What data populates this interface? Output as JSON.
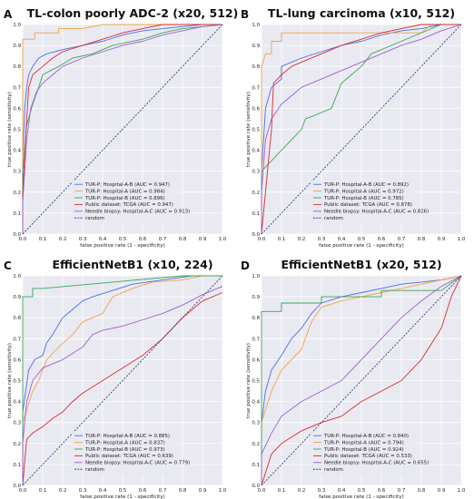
{
  "chart_data": [
    {
      "panel": "A",
      "type": "line",
      "title": "TL-colon poorly ADC-2 (x20, 512)",
      "xlabel": "false positive rate (1 - specificity)",
      "ylabel": "true positive rate (sensitivity)",
      "xlim": [
        0,
        1
      ],
      "ylim": [
        0,
        1
      ],
      "xticks": [
        "0.0",
        "0.1",
        "0.2",
        "0.3",
        "0.4",
        "0.5",
        "0.6",
        "0.7",
        "0.8",
        "0.9",
        "1.0"
      ],
      "yticks": [
        "0.0",
        "0.1",
        "0.2",
        "0.3",
        "0.4",
        "0.5",
        "0.6",
        "0.7",
        "0.8",
        "0.9",
        "1.0"
      ],
      "grid": true,
      "legend_position": "lower-right",
      "series": [
        {
          "name": "TUR-P: Hospital-A-B (AUC = 0.947)",
          "color": "#4a6fe3",
          "x": [
            0,
            0,
            0.01,
            0.02,
            0.03,
            0.05,
            0.08,
            0.12,
            0.2,
            0.3,
            0.4,
            0.5,
            0.6,
            0.7,
            0.8,
            0.9,
            1.0
          ],
          "y": [
            0,
            0.35,
            0.6,
            0.7,
            0.76,
            0.8,
            0.84,
            0.86,
            0.88,
            0.9,
            0.92,
            0.95,
            0.97,
            0.98,
            0.99,
            1.0,
            1.0
          ]
        },
        {
          "name": "TUR-P: Hospital-A (AUC = 0.984)",
          "color": "#f2a343",
          "x": [
            0,
            0,
            0.03,
            0.06,
            0.06,
            0.12,
            0.18,
            0.18,
            0.3,
            0.4,
            0.5,
            1.0
          ],
          "y": [
            0,
            0.93,
            0.93,
            0.93,
            0.96,
            0.96,
            0.96,
            0.98,
            0.98,
            1.0,
            1.0,
            1.0
          ]
        },
        {
          "name": "TUR-P: Hospital-B (AUC = 0.896)",
          "color": "#3aa655",
          "x": [
            0,
            0,
            0.02,
            0.05,
            0.08,
            0.1,
            0.18,
            0.25,
            0.35,
            0.45,
            0.6,
            0.7,
            0.8,
            0.9,
            1.0
          ],
          "y": [
            0,
            0.3,
            0.52,
            0.62,
            0.7,
            0.76,
            0.8,
            0.84,
            0.86,
            0.9,
            0.93,
            0.96,
            0.98,
            0.99,
            1.0
          ]
        },
        {
          "name": "Public dataset: TCGA (AUC = 0.947)",
          "color": "#d62d2d",
          "x": [
            0,
            0,
            0.02,
            0.03,
            0.05,
            0.1,
            0.15,
            0.2,
            0.3,
            0.4,
            0.5,
            0.6,
            0.7,
            0.8,
            0.9,
            1.0
          ],
          "y": [
            0,
            0.2,
            0.55,
            0.7,
            0.76,
            0.8,
            0.84,
            0.87,
            0.9,
            0.93,
            0.96,
            0.98,
            1.0,
            1.0,
            1.0,
            1.0
          ]
        },
        {
          "name": "Needle biopsy: Hospital-A-C (AUC = 0.913)",
          "color": "#9d5ed1",
          "x": [
            0,
            0,
            0.02,
            0.04,
            0.07,
            0.1,
            0.15,
            0.2,
            0.3,
            0.4,
            0.5,
            0.6,
            0.7,
            0.8,
            0.9,
            1.0
          ],
          "y": [
            0,
            0.15,
            0.45,
            0.6,
            0.68,
            0.72,
            0.76,
            0.8,
            0.84,
            0.87,
            0.9,
            0.92,
            0.95,
            0.97,
            0.99,
            1.0
          ]
        },
        {
          "name": "random",
          "color": "#1f2a66",
          "dashed": true,
          "x": [
            0,
            1
          ],
          "y": [
            0,
            1
          ]
        }
      ]
    },
    {
      "panel": "B",
      "type": "line",
      "title": "TL-lung carcinoma (x10, 512)",
      "xlabel": "false positive rate (1 - specificity)",
      "ylabel": "true positive rate (sensitivity)",
      "xlim": [
        0,
        1
      ],
      "ylim": [
        0,
        1
      ],
      "xticks": [
        "0.0",
        "0.1",
        "0.2",
        "0.3",
        "0.4",
        "0.5",
        "0.6",
        "0.7",
        "0.8",
        "0.9",
        "1.0"
      ],
      "yticks": [
        "0.0",
        "0.1",
        "0.2",
        "0.3",
        "0.4",
        "0.5",
        "0.6",
        "0.7",
        "0.8",
        "0.9",
        "1.0"
      ],
      "grid": true,
      "legend_position": "lower-right",
      "series": [
        {
          "name": "TUR-P: Hospital-A-B (AUC = 0.892)",
          "color": "#4a6fe3",
          "x": [
            0,
            0,
            0.02,
            0.05,
            0.1,
            0.1,
            0.2,
            0.3,
            0.4,
            0.5,
            0.6,
            0.7,
            0.8,
            0.9,
            1.0
          ],
          "y": [
            0,
            0.3,
            0.6,
            0.7,
            0.74,
            0.8,
            0.84,
            0.87,
            0.9,
            0.92,
            0.95,
            0.97,
            0.98,
            1.0,
            1.0
          ]
        },
        {
          "name": "TUR-P: Hospital-A (AUC = 0.972)",
          "color": "#f2a343",
          "x": [
            0,
            0,
            0.02,
            0.05,
            0.05,
            0.1,
            0.1,
            0.8,
            0.85,
            1.0
          ],
          "y": [
            0,
            0.8,
            0.86,
            0.86,
            0.92,
            0.92,
            0.96,
            0.96,
            1.0,
            1.0
          ]
        },
        {
          "name": "TUR-P: Hospital-B (AUC = 0.785)",
          "color": "#3aa655",
          "x": [
            0,
            0,
            0.05,
            0.1,
            0.15,
            0.2,
            0.22,
            0.25,
            0.3,
            0.35,
            0.4,
            0.5,
            0.55,
            0.7,
            0.9,
            1.0
          ],
          "y": [
            0,
            0.3,
            0.35,
            0.4,
            0.45,
            0.5,
            0.55,
            0.56,
            0.58,
            0.6,
            0.72,
            0.8,
            0.86,
            0.92,
            1.0,
            1.0
          ]
        },
        {
          "name": "Public dataset: TCGA (AUC = 0.878)",
          "color": "#d62d2d",
          "x": [
            0,
            0.03,
            0.05,
            0.06,
            0.1,
            0.15,
            0.2,
            0.3,
            0.4,
            0.5,
            0.6,
            0.7,
            0.8,
            0.9,
            1.0
          ],
          "y": [
            0,
            0.3,
            0.5,
            0.72,
            0.76,
            0.8,
            0.82,
            0.86,
            0.9,
            0.93,
            0.96,
            0.98,
            1.0,
            1.0,
            1.0
          ]
        },
        {
          "name": "Needle biopsy: Hospital-A-C (AUC = 0.826)",
          "color": "#9d5ed1",
          "x": [
            0,
            0,
            0.02,
            0.05,
            0.1,
            0.15,
            0.2,
            0.3,
            0.4,
            0.5,
            0.6,
            0.7,
            0.8,
            0.9,
            1.0
          ],
          "y": [
            0,
            0.2,
            0.45,
            0.55,
            0.62,
            0.66,
            0.7,
            0.74,
            0.78,
            0.82,
            0.86,
            0.9,
            0.93,
            0.97,
            1.0
          ]
        },
        {
          "name": "random",
          "color": "#1f2a66",
          "dashed": true,
          "x": [
            0,
            1
          ],
          "y": [
            0,
            1
          ]
        }
      ]
    },
    {
      "panel": "C",
      "type": "line",
      "title": "EfficientNetB1 (x10, 224)",
      "xlabel": "false positive rate (1 - specificity)",
      "ylabel": "true positive rate (sensitivity)",
      "xlim": [
        0,
        1
      ],
      "ylim": [
        0,
        1
      ],
      "xticks": [
        "0.0",
        "0.1",
        "0.2",
        "0.3",
        "0.4",
        "0.5",
        "0.6",
        "0.7",
        "0.8",
        "0.9",
        "1.0"
      ],
      "yticks": [
        "0.0",
        "0.1",
        "0.2",
        "0.3",
        "0.4",
        "0.5",
        "0.6",
        "0.7",
        "0.8",
        "0.9",
        "1.0"
      ],
      "grid": true,
      "legend_position": "lower-right",
      "series": [
        {
          "name": "TUR-P: Hospital-A-B (AUC = 0.885)",
          "color": "#4a6fe3",
          "x": [
            0,
            0,
            0.03,
            0.06,
            0.1,
            0.12,
            0.15,
            0.2,
            0.25,
            0.3,
            0.35,
            0.45,
            0.55,
            0.7,
            0.85,
            1.0
          ],
          "y": [
            0,
            0.35,
            0.55,
            0.6,
            0.62,
            0.68,
            0.72,
            0.8,
            0.84,
            0.88,
            0.9,
            0.93,
            0.96,
            0.98,
            1.0,
            1.0
          ]
        },
        {
          "name": "TUR-P: Hospital-A (AUC = 0.837)",
          "color": "#f2a343",
          "x": [
            0,
            0,
            0.05,
            0.08,
            0.1,
            0.12,
            0.18,
            0.25,
            0.3,
            0.4,
            0.45,
            0.55,
            0.65,
            0.8,
            0.9,
            1.0
          ],
          "y": [
            0,
            0.3,
            0.45,
            0.5,
            0.55,
            0.6,
            0.66,
            0.72,
            0.78,
            0.82,
            0.9,
            0.94,
            0.97,
            0.98,
            1.0,
            1.0
          ]
        },
        {
          "name": "TUR-P: Hospital-B (AUC = 0.973)",
          "color": "#3aa655",
          "x": [
            0,
            0,
            0.05,
            0.05,
            0.1,
            0.8,
            1.0
          ],
          "y": [
            0,
            0.9,
            0.9,
            0.94,
            0.94,
            1.0,
            1.0
          ]
        },
        {
          "name": "Public dataset: TCGA (AUC = 0.639)",
          "color": "#d62d2d",
          "x": [
            0,
            0.02,
            0.05,
            0.1,
            0.15,
            0.2,
            0.25,
            0.3,
            0.35,
            0.4,
            0.5,
            0.6,
            0.7,
            0.8,
            0.9,
            1.0
          ],
          "y": [
            0,
            0.22,
            0.25,
            0.28,
            0.32,
            0.35,
            0.4,
            0.44,
            0.47,
            0.5,
            0.56,
            0.62,
            0.7,
            0.8,
            0.88,
            0.92
          ]
        },
        {
          "name": "Needle biopsy: Hospital-A-C (AUC = 0.779)",
          "color": "#9d5ed1",
          "x": [
            0,
            0,
            0.02,
            0.05,
            0.1,
            0.2,
            0.3,
            0.35,
            0.4,
            0.5,
            0.6,
            0.7,
            0.8,
            0.9,
            1.0
          ],
          "y": [
            0,
            0.2,
            0.4,
            0.5,
            0.56,
            0.6,
            0.66,
            0.72,
            0.74,
            0.76,
            0.79,
            0.82,
            0.86,
            0.91,
            0.95
          ]
        },
        {
          "name": "random",
          "color": "#1f2a66",
          "dashed": true,
          "x": [
            0,
            1
          ],
          "y": [
            0,
            1
          ]
        }
      ]
    },
    {
      "panel": "D",
      "type": "line",
      "title": "EfficientNetB1 (x20, 512)",
      "xlabel": "false positive rate (1 - specificity)",
      "ylabel": "true positive rate (sensitivity)",
      "xlim": [
        0,
        1
      ],
      "ylim": [
        0,
        1
      ],
      "xticks": [
        "0.0",
        "0.1",
        "0.2",
        "0.3",
        "0.4",
        "0.5",
        "0.6",
        "0.7",
        "0.8",
        "0.9",
        "1.0"
      ],
      "yticks": [
        "0.0",
        "0.1",
        "0.2",
        "0.3",
        "0.4",
        "0.5",
        "0.6",
        "0.7",
        "0.8",
        "0.9",
        "1.0"
      ],
      "grid": true,
      "legend_position": "lower-right",
      "series": [
        {
          "name": "TUR-P: Hospital-A-B (AUC = 0.840)",
          "color": "#4a6fe3",
          "x": [
            0,
            0,
            0.02,
            0.05,
            0.1,
            0.15,
            0.2,
            0.25,
            0.3,
            0.4,
            0.5,
            0.6,
            0.7,
            0.8,
            0.9,
            1.0
          ],
          "y": [
            0,
            0.3,
            0.45,
            0.55,
            0.62,
            0.7,
            0.75,
            0.82,
            0.87,
            0.9,
            0.92,
            0.94,
            0.96,
            0.97,
            0.98,
            1.0
          ]
        },
        {
          "name": "TUR-P: Hospital-A (AUC = 0.794)",
          "color": "#f2a343",
          "x": [
            0,
            0,
            0.05,
            0.1,
            0.15,
            0.2,
            0.25,
            0.3,
            0.4,
            0.5,
            0.6,
            0.7,
            0.8,
            0.9,
            1.0
          ],
          "y": [
            0,
            0.3,
            0.45,
            0.55,
            0.6,
            0.65,
            0.78,
            0.85,
            0.88,
            0.9,
            0.92,
            0.94,
            0.96,
            0.98,
            1.0
          ]
        },
        {
          "name": "TUR-P: Hospital-B (AUC = 0.924)",
          "color": "#3aa655",
          "x": [
            0,
            0,
            0.1,
            0.1,
            0.3,
            0.3,
            0.6,
            0.6,
            0.9,
            1.0
          ],
          "y": [
            0,
            0.83,
            0.83,
            0.87,
            0.87,
            0.9,
            0.9,
            0.93,
            0.93,
            1.0
          ]
        },
        {
          "name": "Public dataset: TCGA (AUC = 0.533)",
          "color": "#d62d2d",
          "x": [
            0,
            0.05,
            0.1,
            0.2,
            0.3,
            0.4,
            0.5,
            0.6,
            0.7,
            0.8,
            0.9,
            0.95,
            1.0
          ],
          "y": [
            0,
            0.15,
            0.2,
            0.26,
            0.3,
            0.33,
            0.4,
            0.45,
            0.5,
            0.6,
            0.75,
            0.9,
            1.0
          ]
        },
        {
          "name": "Needle biopsy: Hospital-A-C (AUC = 0.655)",
          "color": "#9d5ed1",
          "x": [
            0,
            0,
            0.05,
            0.1,
            0.2,
            0.3,
            0.4,
            0.5,
            0.6,
            0.7,
            0.8,
            0.9,
            1.0
          ],
          "y": [
            0,
            0.15,
            0.25,
            0.33,
            0.4,
            0.45,
            0.5,
            0.6,
            0.7,
            0.8,
            0.88,
            0.95,
            1.0
          ]
        },
        {
          "name": "random",
          "color": "#1f2a66",
          "dashed": true,
          "x": [
            0,
            1
          ],
          "y": [
            0,
            1
          ]
        }
      ]
    }
  ]
}
